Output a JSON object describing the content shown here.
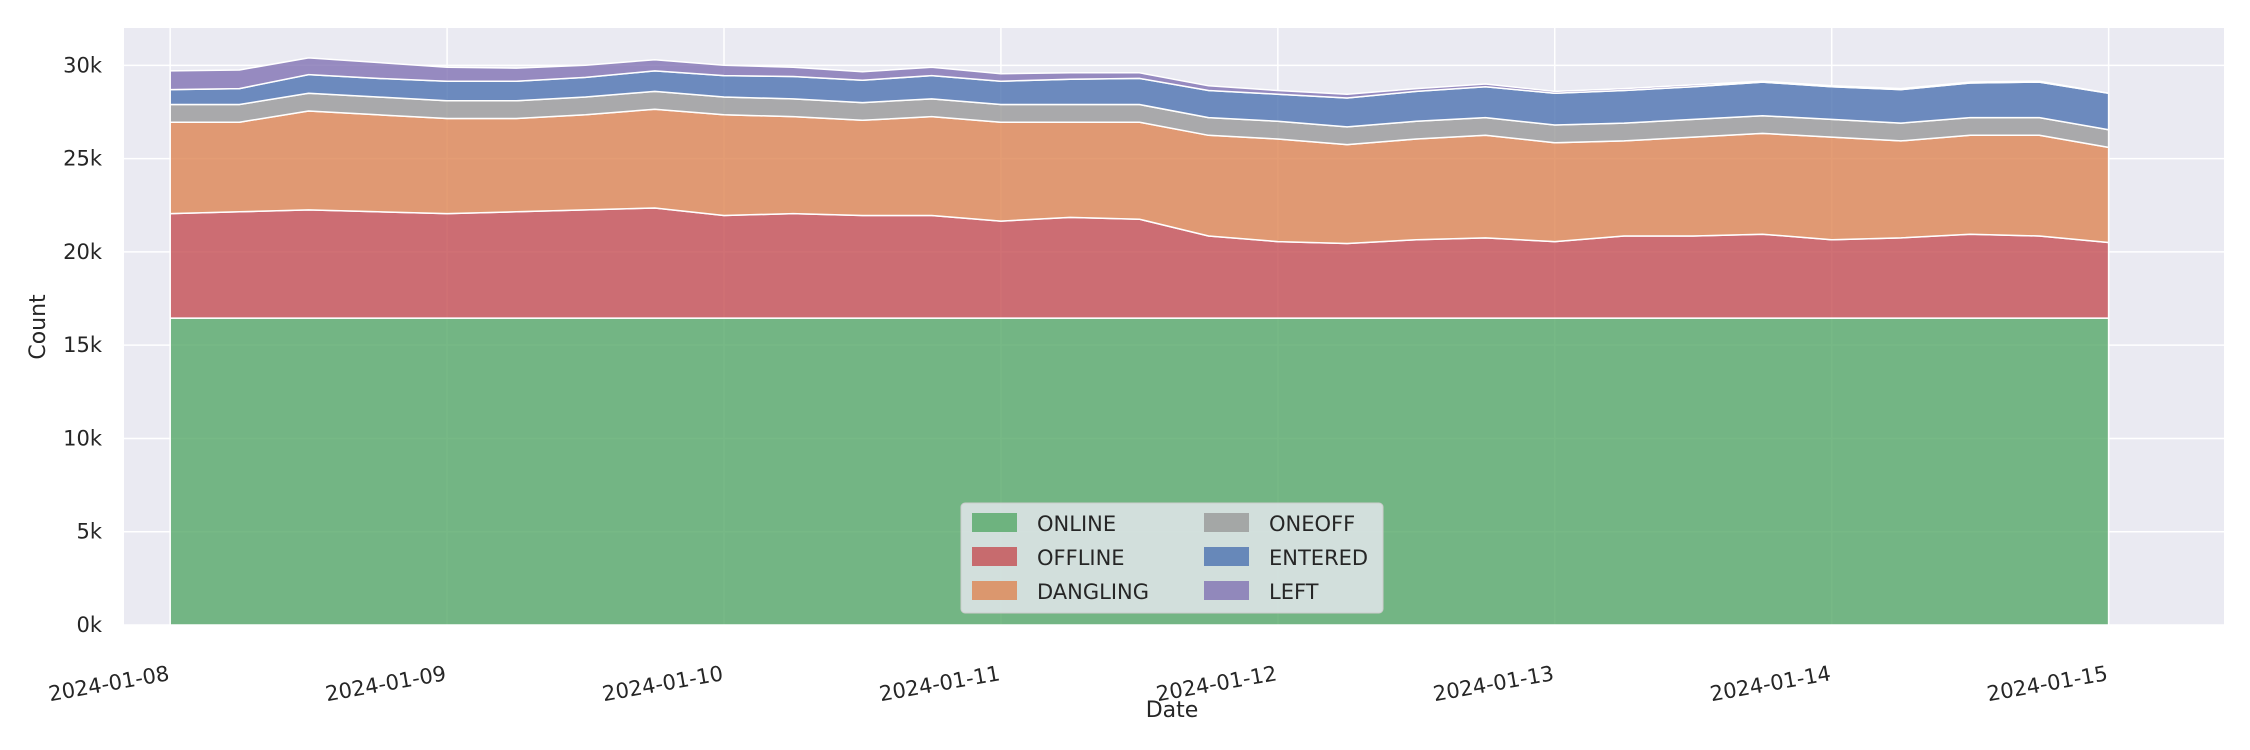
{
  "chart_data": {
    "type": "area",
    "stacked": true,
    "xlabel": "Date",
    "ylabel": "Count",
    "x_range": [
      "2024-01-07T20:00",
      "2024-01-15T10:00"
    ],
    "ylim": [
      0,
      32000
    ],
    "x_ticks": [
      "2024-01-08",
      "2024-01-09",
      "2024-01-10",
      "2024-01-11",
      "2024-01-12",
      "2024-01-13",
      "2024-01-14",
      "2024-01-15"
    ],
    "y_ticks": [
      {
        "value": 0,
        "label": "0k"
      },
      {
        "value": 5000,
        "label": "5k"
      },
      {
        "value": 10000,
        "label": "10k"
      },
      {
        "value": 15000,
        "label": "15k"
      },
      {
        "value": 20000,
        "label": "20k"
      },
      {
        "value": 25000,
        "label": "25k"
      },
      {
        "value": 30000,
        "label": "30k"
      }
    ],
    "grid": true,
    "legend_position": "bottom-center",
    "legend_columns": 2,
    "x": [
      "2024-01-08T00:00",
      "2024-01-08T06:00",
      "2024-01-08T12:00",
      "2024-01-08T18:00",
      "2024-01-09T00:00",
      "2024-01-09T06:00",
      "2024-01-09T12:00",
      "2024-01-09T18:00",
      "2024-01-10T00:00",
      "2024-01-10T06:00",
      "2024-01-10T12:00",
      "2024-01-10T18:00",
      "2024-01-11T00:00",
      "2024-01-11T06:00",
      "2024-01-11T12:00",
      "2024-01-11T18:00",
      "2024-01-12T00:00",
      "2024-01-12T06:00",
      "2024-01-12T12:00",
      "2024-01-12T18:00",
      "2024-01-13T00:00",
      "2024-01-13T06:00",
      "2024-01-13T12:00",
      "2024-01-13T18:00",
      "2024-01-14T00:00",
      "2024-01-14T06:00",
      "2024-01-14T12:00",
      "2024-01-14T18:00",
      "2024-01-15T00:00"
    ],
    "series": [
      {
        "name": "ONLINE",
        "color": "#55a868",
        "values": [
          16450,
          16450,
          16450,
          16450,
          16450,
          16450,
          16450,
          16450,
          16450,
          16450,
          16450,
          16450,
          16450,
          16450,
          16450,
          16450,
          16450,
          16450,
          16450,
          16450,
          16450,
          16450,
          16450,
          16450,
          16450,
          16450,
          16450,
          16450,
          16450
        ]
      },
      {
        "name": "OFFLINE",
        "color": "#c44e52",
        "values": [
          5600,
          5700,
          5800,
          5700,
          5600,
          5700,
          5800,
          5900,
          5500,
          5600,
          5500,
          5500,
          5200,
          5400,
          5300,
          4400,
          4100,
          4000,
          4200,
          4300,
          4100,
          4400,
          4400,
          4500,
          4200,
          4300,
          4500,
          4400,
          4050
        ]
      },
      {
        "name": "DANGLING",
        "color": "#dd8452",
        "values": [
          4900,
          4800,
          5300,
          5200,
          5100,
          5000,
          5100,
          5300,
          5400,
          5200,
          5100,
          5300,
          5300,
          5100,
          5200,
          5400,
          5500,
          5300,
          5400,
          5500,
          5300,
          5100,
          5300,
          5400,
          5500,
          5200,
          5300,
          5400,
          5100
        ]
      },
      {
        "name": "ONEOFF",
        "color": "#999999",
        "values": [
          950,
          950,
          950,
          950,
          950,
          950,
          950,
          950,
          950,
          950,
          950,
          950,
          950,
          950,
          950,
          950,
          950,
          950,
          950,
          950,
          950,
          950,
          950,
          950,
          950,
          950,
          950,
          950,
          950
        ]
      },
      {
        "name": "ENTERED",
        "color": "#4c72b0",
        "values": [
          800,
          850,
          1000,
          1000,
          1050,
          1050,
          1050,
          1100,
          1150,
          1200,
          1200,
          1250,
          1250,
          1350,
          1400,
          1450,
          1450,
          1550,
          1600,
          1650,
          1700,
          1750,
          1750,
          1800,
          1750,
          1800,
          1850,
          1900,
          1950
        ]
      },
      {
        "name": "LEFT",
        "color": "#8172b3",
        "values": [
          1000,
          1000,
          900,
          850,
          750,
          700,
          650,
          600,
          550,
          500,
          450,
          450,
          400,
          350,
          300,
          250,
          200,
          200,
          150,
          150,
          100,
          100,
          100,
          50,
          50,
          50,
          50,
          50,
          0
        ]
      }
    ]
  }
}
